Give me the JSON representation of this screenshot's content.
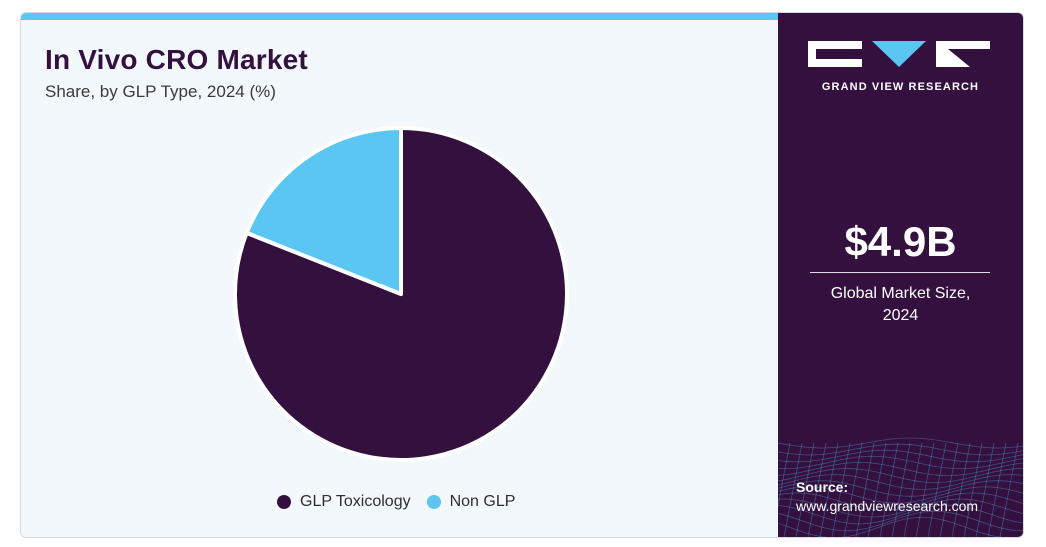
{
  "header": {
    "title": "In Vivo CRO Market",
    "subtitle": "Share, by GLP Type, 2024 (%)"
  },
  "brand": {
    "name": "GRAND VIEW RESEARCH",
    "logo_icon": "gvr-logo-icon"
  },
  "metric": {
    "value": "$4.9B",
    "label": "Global Market Size, 2024"
  },
  "source": {
    "title": "Source:",
    "url": "www.grandviewresearch.com"
  },
  "colors": {
    "primary": "#34103f",
    "accent": "#5bc6f2",
    "background": "#f3f8fc"
  },
  "chart_data": {
    "type": "pie",
    "title": "In Vivo CRO Market",
    "subtitle": "Share, by GLP Type, 2024 (%)",
    "categories": [
      "GLP Toxicology",
      "Non GLP"
    ],
    "values": [
      81,
      19
    ],
    "colors": [
      "#34103f",
      "#5bc6f2"
    ],
    "start_angle_deg": 0,
    "direction": "clockwise",
    "legend_position": "bottom"
  }
}
